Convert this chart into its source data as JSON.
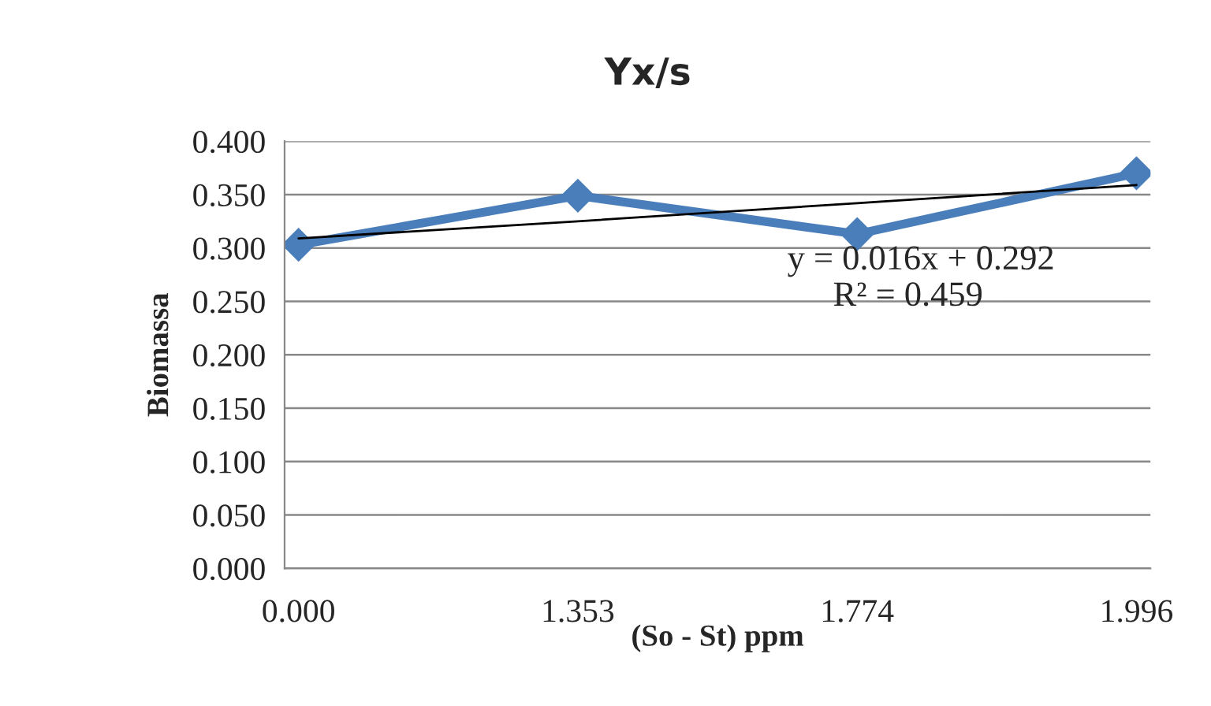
{
  "chart_data": {
    "type": "line",
    "title": "Yx/s",
    "xlabel": "(So - St) ppm",
    "ylabel": "Biomassa",
    "categories": [
      "0.000",
      "1.353",
      "1.774",
      "1.996"
    ],
    "series": [
      {
        "color": "#4a7ebb",
        "values": [
          0.303,
          0.349,
          0.313,
          0.37
        ],
        "marker": "diamond",
        "line_style": "solid"
      },
      {
        "color": "#000000",
        "values": [
          0.309,
          0.325,
          0.342,
          0.359
        ],
        "marker": "none",
        "line_style": "solid"
      }
    ],
    "ylim": [
      0,
      0.4
    ],
    "yticks": [
      {
        "value": 0,
        "label": "0.000"
      },
      {
        "value": 0.05,
        "label": "0.050"
      },
      {
        "value": 0.1,
        "label": "0.100"
      },
      {
        "value": 0.15,
        "label": "0.150"
      },
      {
        "value": 0.2,
        "label": "0.200"
      },
      {
        "value": 0.25,
        "label": "0.250"
      },
      {
        "value": 0.3,
        "label": "0.300"
      },
      {
        "value": 0.35,
        "label": "0.350"
      },
      {
        "value": 0.4,
        "label": "0.400"
      }
    ],
    "grid": "y",
    "legend": false,
    "annotations": [
      "y = 0.016x + 0.292",
      "R² = 0.459"
    ]
  }
}
